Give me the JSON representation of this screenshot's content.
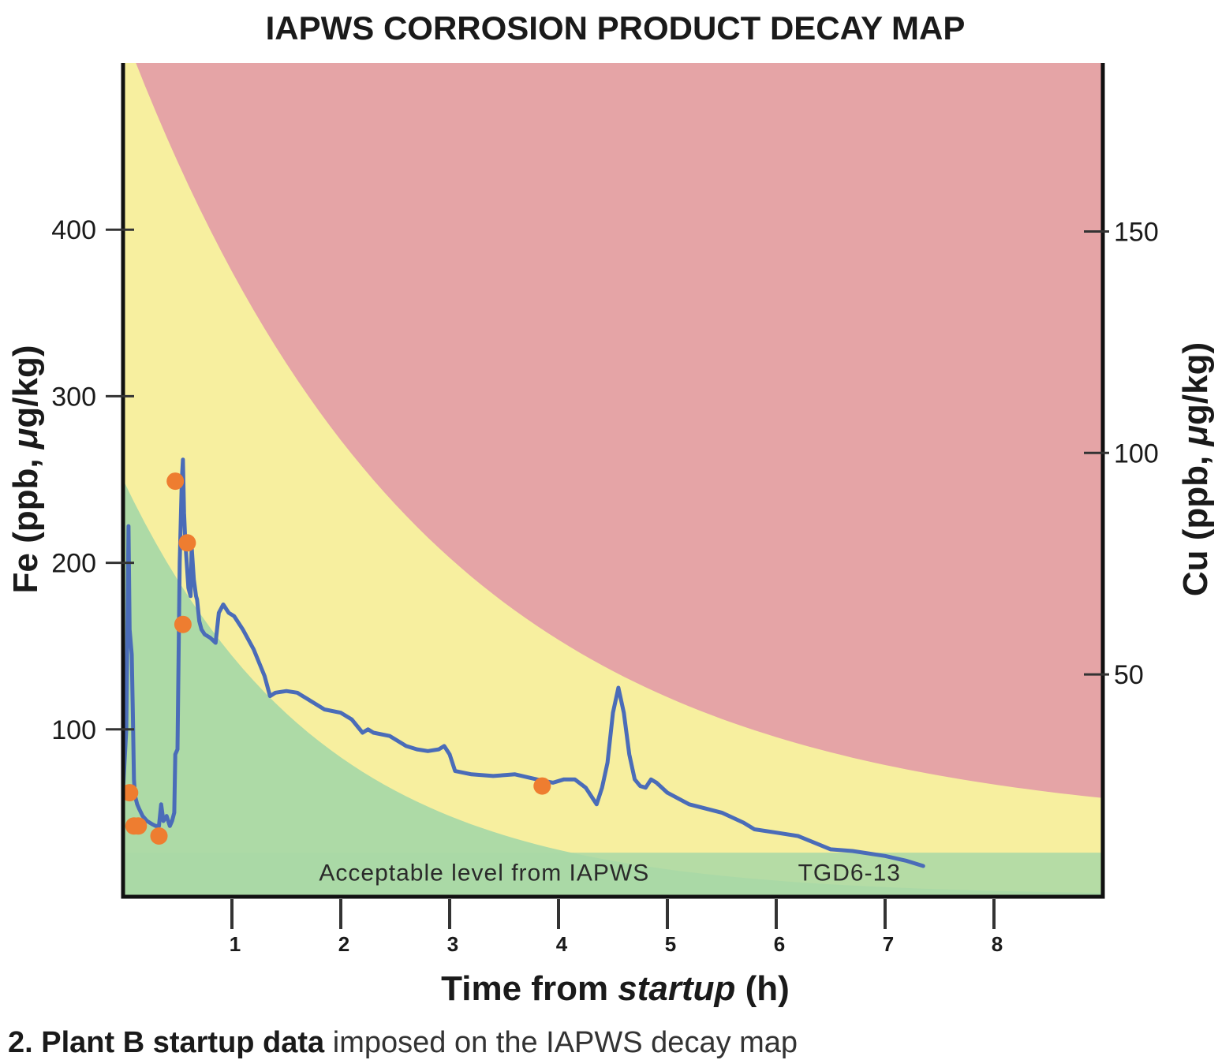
{
  "chart_data": {
    "type": "line",
    "title": "IAPWS CORROSION PRODUCT DECAY MAP",
    "xlabel_prefix": "Time from ",
    "xlabel_italic": "startup",
    "xlabel_suffix": " (h)",
    "ylabel_left_prefix": "Fe (ppb, ",
    "ylabel_left_italic": "μ",
    "ylabel_left_suffix": "g/kg)",
    "ylabel_right_prefix": "Cu (ppb, ",
    "ylabel_right_italic": "μ",
    "ylabel_right_suffix": "g/kg)",
    "xlim": [
      0,
      9
    ],
    "ylim_left": [
      0,
      500
    ],
    "ylim_right": [
      0,
      188
    ],
    "x_ticks": [
      "1",
      "2",
      "3",
      "4",
      "5",
      "6",
      "7",
      "8"
    ],
    "x_tick_values": [
      1,
      2,
      3,
      4,
      5,
      6,
      7,
      8
    ],
    "y_left_ticks": [
      "100",
      "200",
      "300",
      "400"
    ],
    "y_left_tick_values": [
      100,
      200,
      300,
      400
    ],
    "y_right_ticks": [
      "50",
      "100",
      "150"
    ],
    "y_right_tick_values": [
      50,
      100,
      150
    ],
    "grid": false,
    "background_zones": {
      "green": "#a9d8a6",
      "yellow": "#f8f39e",
      "red": "#e5a4a6",
      "acceptable_band_fe": 26
    },
    "annotations": [
      {
        "text": "Acceptable level from IAPWS",
        "x": 1.8,
        "y": 14
      },
      {
        "text": "TGD6-13",
        "x": 6.2,
        "y": 14
      }
    ],
    "series": [
      {
        "color": "#4a6cb8",
        "x": [
          0,
          0.03,
          0.05,
          0.06,
          0.08,
          0.09,
          0.1,
          0.11,
          0.13,
          0.15,
          0.18,
          0.22,
          0.27,
          0.3,
          0.33,
          0.35,
          0.37,
          0.4,
          0.43,
          0.45,
          0.47,
          0.48,
          0.5,
          0.52,
          0.54,
          0.55,
          0.56,
          0.57,
          0.58,
          0.6,
          0.62,
          0.63,
          0.65,
          0.67,
          0.68,
          0.7,
          0.72,
          0.75,
          0.8,
          0.85,
          0.88,
          0.92,
          0.97,
          1.02,
          1.1,
          1.2,
          1.3,
          1.35,
          1.4,
          1.5,
          1.6,
          1.7,
          1.85,
          2.0,
          2.1,
          2.2,
          2.25,
          2.3,
          2.45,
          2.6,
          2.7,
          2.8,
          2.9,
          2.95,
          3.0,
          3.05,
          3.2,
          3.4,
          3.6,
          3.8,
          3.95,
          4.05,
          4.15,
          4.25,
          4.35,
          4.4,
          4.45,
          4.5,
          4.55,
          4.6,
          4.65,
          4.7,
          4.75,
          4.8,
          4.85,
          4.9,
          5.0,
          5.2,
          5.5,
          5.7,
          5.8,
          6.0,
          6.2,
          6.35,
          6.5,
          6.7,
          7.0,
          7.2,
          7.35
        ],
        "y": [
          64,
          100,
          222,
          160,
          145,
          110,
          70,
          60,
          55,
          52,
          48,
          45,
          43,
          42,
          42,
          55,
          45,
          48,
          42,
          45,
          50,
          85,
          88,
          200,
          250,
          262,
          230,
          215,
          205,
          185,
          180,
          210,
          190,
          180,
          178,
          165,
          160,
          157,
          155,
          152,
          170,
          175,
          170,
          168,
          160,
          148,
          132,
          120,
          122,
          123,
          122,
          118,
          112,
          110,
          106,
          98,
          100,
          98,
          96,
          90,
          88,
          87,
          88,
          90,
          85,
          75,
          73,
          72,
          73,
          70,
          68,
          70,
          70,
          65,
          55,
          65,
          80,
          110,
          125,
          110,
          85,
          70,
          66,
          65,
          70,
          68,
          62,
          55,
          50,
          44,
          40,
          38,
          36,
          32,
          28,
          27,
          24,
          21,
          18
        ]
      }
    ],
    "markers": {
      "color": "#ee7d30",
      "x": [
        0.06,
        0.1,
        0.14,
        0.33,
        0.48,
        0.55,
        0.59,
        3.85
      ],
      "y": [
        62,
        42,
        42,
        36,
        249,
        163,
        212,
        66
      ]
    }
  },
  "caption": {
    "bold": "2. Plant B startup data",
    "rest": " imposed on the IAPWS decay map"
  }
}
